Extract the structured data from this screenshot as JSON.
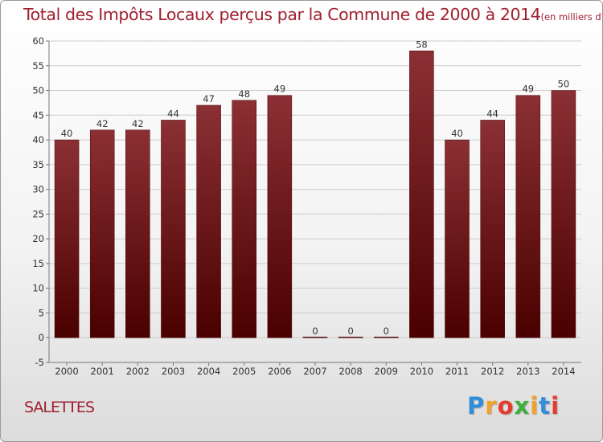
{
  "header": {
    "title": "Total des Impôts Locaux perçus par la Commune de 2000 à 2014",
    "unit": "(en milliers d'€)"
  },
  "footer": {
    "commune": "SALETTES",
    "logo": {
      "letters": [
        "P",
        "r",
        "o",
        "x",
        "i",
        "t",
        "i"
      ],
      "colors": [
        "#2f8fd8",
        "#f2a228",
        "#e53b2e",
        "#3fae3f",
        "#f2a228",
        "#2f8fd8",
        "#e53b2e"
      ]
    }
  },
  "chart_data": {
    "type": "bar",
    "title": "Total des Impôts Locaux perçus par la Commune de 2000 à 2014",
    "xlabel": "",
    "ylabel": "",
    "categories": [
      "2000",
      "2001",
      "2002",
      "2003",
      "2004",
      "2005",
      "2006",
      "2007",
      "2008",
      "2009",
      "2010",
      "2011",
      "2012",
      "2013",
      "2014"
    ],
    "values": [
      40,
      42,
      42,
      44,
      47,
      48,
      49,
      0,
      0,
      0,
      58,
      40,
      44,
      49,
      50
    ],
    "ylim": [
      -5,
      60
    ],
    "yticks": [
      -5,
      0,
      5,
      10,
      15,
      20,
      25,
      30,
      35,
      40,
      45,
      50,
      55,
      60
    ],
    "grid": true,
    "legend": "none",
    "colors": {
      "bar_light": "#8b3034",
      "bar_dark": "#4a0000",
      "grid": "#cccccc",
      "axis": "#777777"
    }
  }
}
